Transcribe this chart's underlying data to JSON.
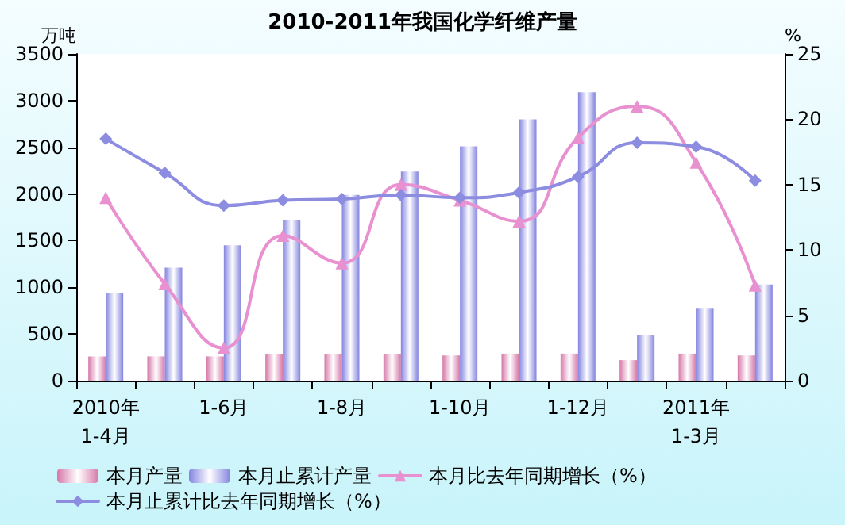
{
  "chart_data": {
    "type": "bar",
    "title": "2010-2011年我国化学纤维产量",
    "ylabel": "万吨",
    "y2label": "%",
    "categories": [
      "2010年\n1-4月",
      null,
      "1-6月",
      null,
      "1-8月",
      null,
      "1-10月",
      null,
      "1-12月",
      null,
      "2011年\n1-3月",
      null
    ],
    "series": [
      {
        "name": "本月产量",
        "color": "#d678a8",
        "values": [
          260,
          260,
          260,
          280,
          280,
          280,
          270,
          290,
          290,
          220,
          290,
          270
        ]
      },
      {
        "name": "本月止累计产量",
        "color": "#8484e0",
        "values": [
          940,
          1210,
          1450,
          1720,
          1990,
          2240,
          2510,
          2800,
          3090,
          490,
          770,
          1030
        ]
      },
      {
        "name": "本月比去年同期增长（%）",
        "type": "line",
        "axis": "y2",
        "marker": "triangle",
        "color": "#e890d0",
        "values": [
          14.0,
          7.4,
          2.5,
          11.1,
          9.0,
          15.0,
          13.8,
          12.2,
          18.6,
          21.0,
          16.7,
          7.3
        ]
      },
      {
        "name": "本月止累计比去年同期增长（%）",
        "type": "line",
        "axis": "y2",
        "marker": "diamond",
        "color": "#8c8ce0",
        "values": [
          18.5,
          15.9,
          13.4,
          13.8,
          13.9,
          14.2,
          14.0,
          14.4,
          15.6,
          18.2,
          17.9,
          15.3
        ]
      }
    ],
    "ylim": [
      0,
      3500
    ],
    "yticks": [
      0,
      500,
      1000,
      1500,
      2000,
      2500,
      3000,
      3500
    ],
    "y2lim": [
      0,
      25
    ],
    "y2ticks": [
      0,
      5,
      10,
      15,
      20,
      25
    ],
    "legend": "bottom",
    "grid": false,
    "line_style": "solid"
  }
}
